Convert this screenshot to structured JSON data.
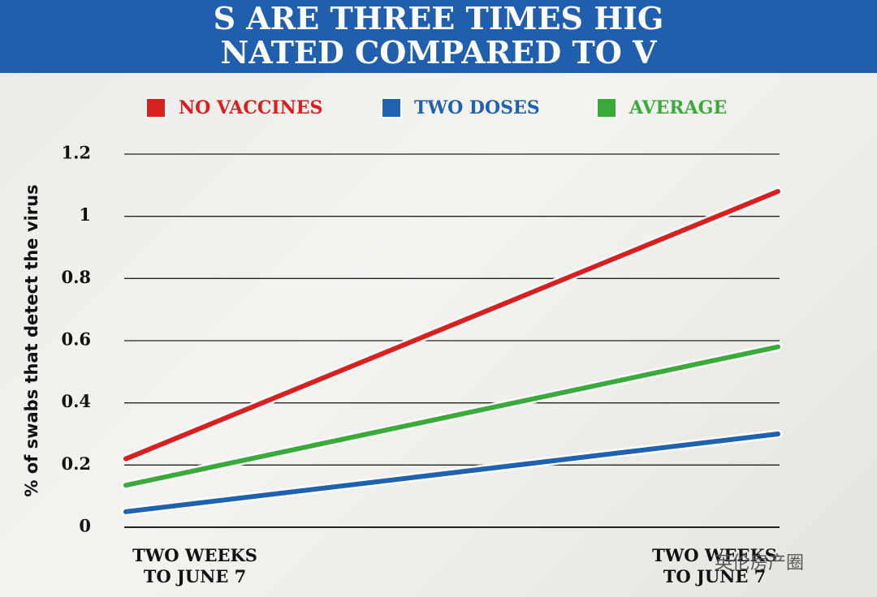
{
  "chart_data": {
    "type": "line",
    "title": [
      "S ARE THREE TIMES HIG",
      "NATED COMPARED TO V"
    ],
    "y_label": "% of swabs that detect the virus",
    "categories": [
      "TWO WEEKS TO JUNE 7",
      "TWO WEEKS TO JUNE 7"
    ],
    "series": [
      {
        "name": "NO VACCINES",
        "color": "#d9201f",
        "values": [
          0.22,
          1.08
        ]
      },
      {
        "name": "TWO DOSES",
        "color": "#1f63b0",
        "values": [
          0.05,
          0.3
        ]
      },
      {
        "name": "AVERAGE",
        "color": "#3aab3a",
        "values": [
          0.135,
          0.58
        ]
      }
    ],
    "ylim": [
      0,
      1.2
    ],
    "yticks": [
      0,
      0.2,
      0.4,
      0.6,
      0.8,
      1,
      1.2
    ],
    "grid": true,
    "watermark": "英伦房产圈"
  }
}
